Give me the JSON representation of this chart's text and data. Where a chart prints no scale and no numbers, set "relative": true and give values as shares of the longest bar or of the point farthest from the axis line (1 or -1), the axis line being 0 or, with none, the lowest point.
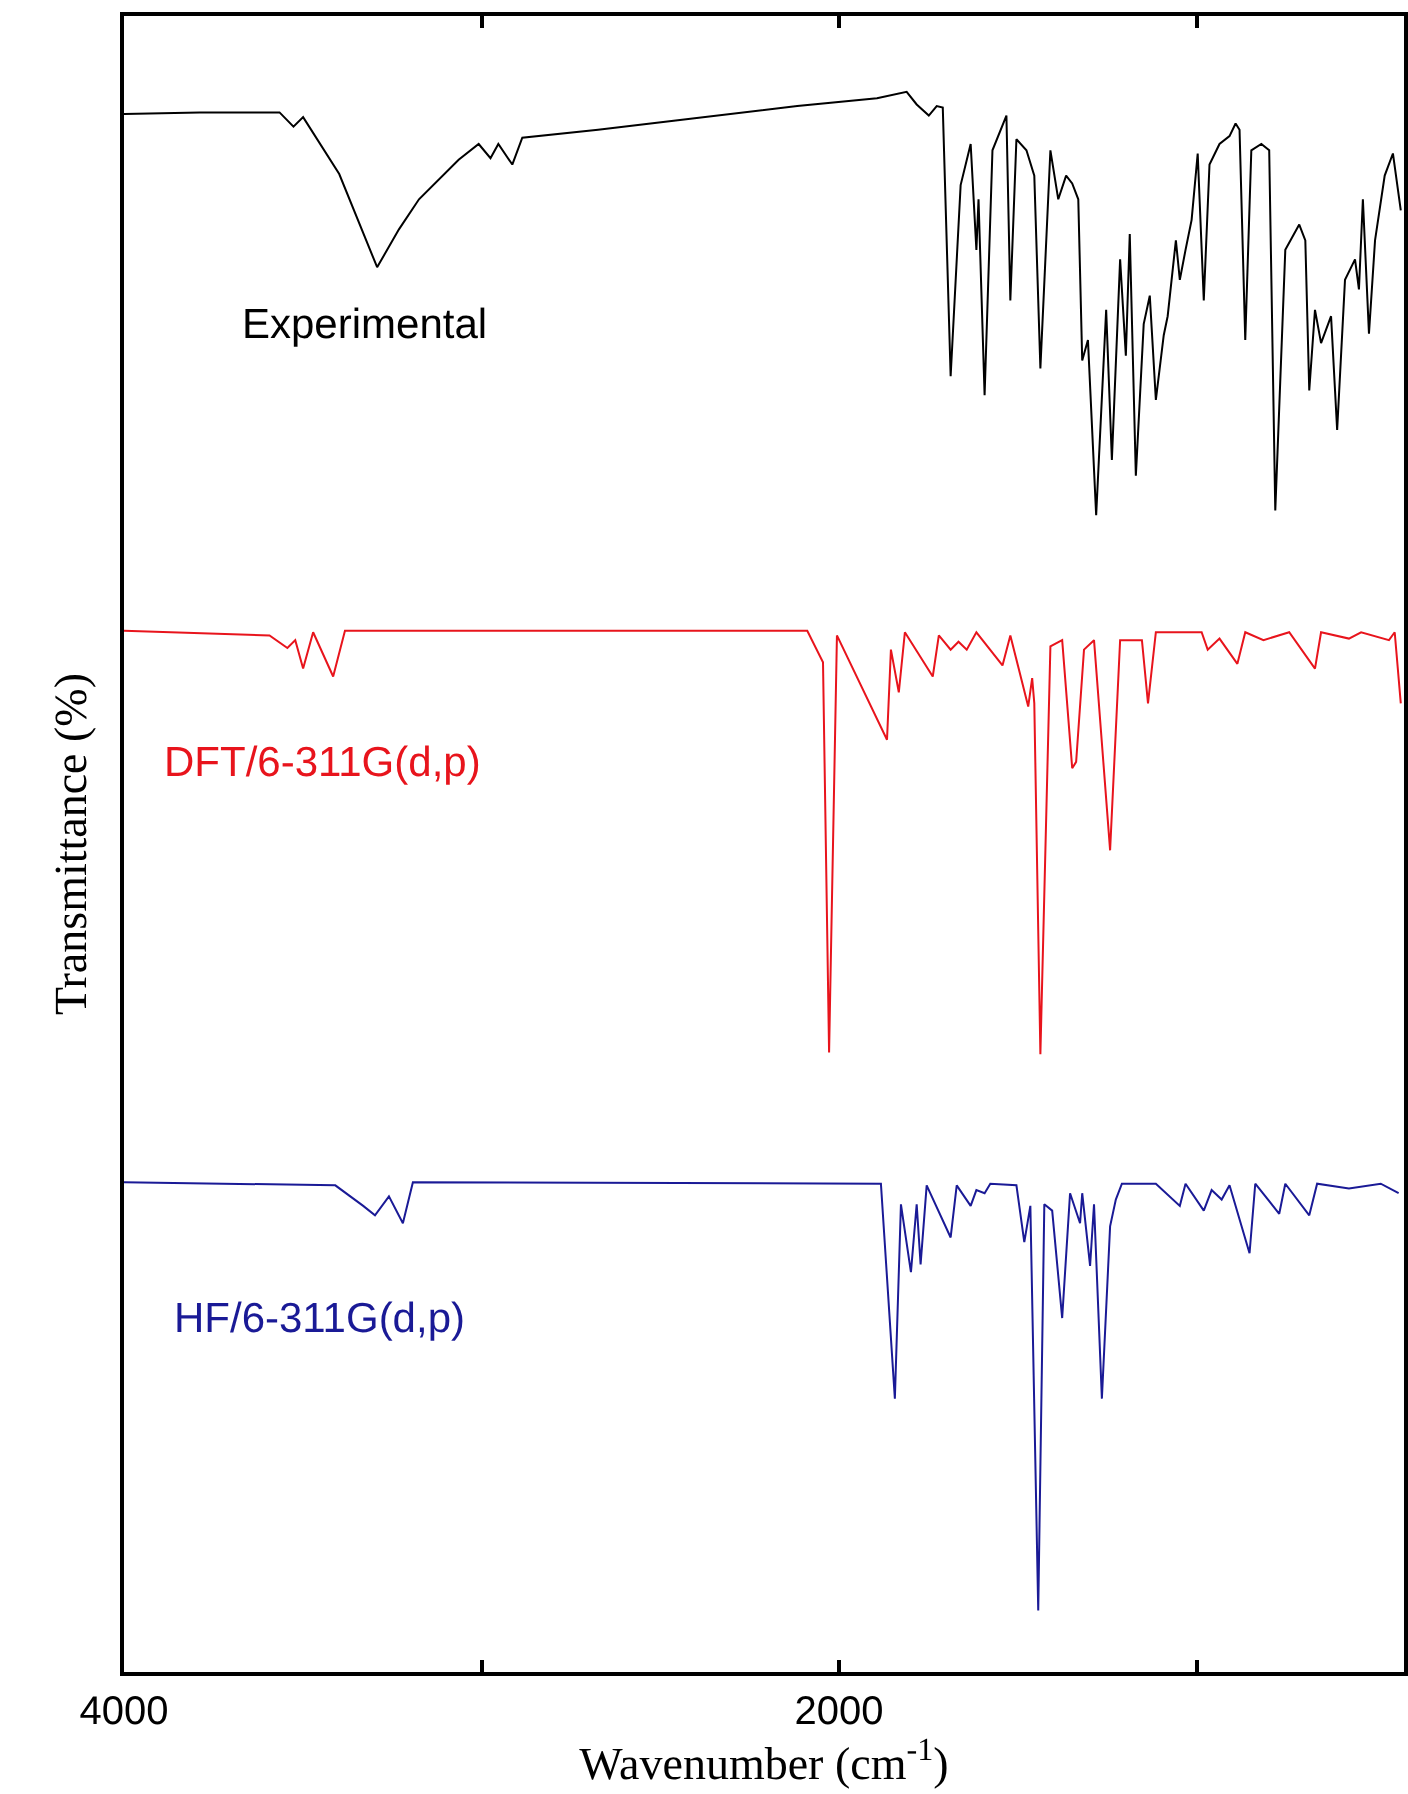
{
  "chart_data": {
    "type": "line",
    "relative": true,
    "xlabel": "Wavenumber (cm$^{-1}$)",
    "ylabel": "Transmittance (%)",
    "xlim": [
      4000,
      420
    ],
    "xticks": [
      4000,
      {
        "value": 3000,
        "label": null
      },
      2000,
      {
        "value": 1000,
        "label": null
      }
    ],
    "legend": false,
    "grid": false,
    "marker": "none",
    "line_style": "solid",
    "series": [
      {
        "name": "Experimental",
        "color": "#000000",
        "x": [
          4000,
          3788,
          3565,
          3526,
          3499,
          3398,
          3292,
          3231,
          3175,
          3064,
          3008,
          2975,
          2953,
          2914,
          2886,
          2674,
          2451,
          2117,
          1894,
          1811,
          1783,
          1749,
          1727,
          1710,
          1688,
          1660,
          1632,
          1616,
          1610,
          1593,
          1571,
          1532,
          1521,
          1504,
          1476,
          1454,
          1437,
          1409,
          1387,
          1365,
          1348,
          1331,
          1320,
          1304,
          1281,
          1253,
          1237,
          1214,
          1198,
          1187,
          1170,
          1148,
          1131,
          1114,
          1092,
          1081,
          1058,
          1047,
          1031,
          1014,
          997,
          980,
          964,
          936,
          908,
          891,
          880,
          864,
          847,
          819,
          797,
          780,
          752,
          713,
          696,
          685,
          669,
          652,
          624,
          607,
          585,
          557,
          546,
          535,
          518,
          501,
          474,
          451,
          429
        ],
        "values": [
          0.986,
          0.987,
          0.987,
          0.978,
          0.984,
          0.948,
          0.889,
          0.913,
          0.932,
          0.957,
          0.967,
          0.958,
          0.967,
          0.954,
          0.971,
          0.976,
          0.982,
          0.991,
          0.996,
          1.0,
          0.992,
          0.985,
          0.991,
          0.99,
          0.82,
          0.941,
          0.967,
          0.9,
          0.932,
          0.808,
          0.963,
          0.985,
          0.868,
          0.97,
          0.963,
          0.947,
          0.825,
          0.963,
          0.932,
          0.947,
          0.942,
          0.932,
          0.83,
          0.843,
          0.732,
          0.862,
          0.767,
          0.894,
          0.833,
          0.91,
          0.757,
          0.853,
          0.871,
          0.805,
          0.846,
          0.858,
          0.906,
          0.881,
          0.9,
          0.919,
          0.961,
          0.868,
          0.954,
          0.967,
          0.972,
          0.98,
          0.976,
          0.843,
          0.963,
          0.967,
          0.963,
          0.735,
          0.9,
          0.916,
          0.906,
          0.811,
          0.862,
          0.841,
          0.858,
          0.786,
          0.881,
          0.894,
          0.875,
          0.932,
          0.847,
          0.906,
          0.947,
          0.961,
          0.925
        ]
      },
      {
        "name": "DFT/6-311G(d,p)",
        "color": "#e8141c",
        "x": [
          4000,
          3593,
          3543,
          3521,
          3499,
          3471,
          3415,
          3382,
          2089,
          2045,
          2028,
          2006,
          1866,
          1855,
          1833,
          1816,
          1738,
          1721,
          1688,
          1666,
          1643,
          1616,
          1543,
          1521,
          1471,
          1460,
          1454,
          1437,
          1409,
          1376,
          1348,
          1337,
          1315,
          1287,
          1242,
          1214,
          1153,
          1136,
          1114,
          986,
          969,
          936,
          886,
          864,
          813,
          741,
          669,
          652,
          574,
          540,
          462,
          446,
          429
        ],
        "values": [
          0.659,
          0.656,
          0.648,
          0.653,
          0.635,
          0.658,
          0.63,
          0.659,
          0.659,
          0.639,
          0.392,
          0.656,
          0.59,
          0.647,
          0.62,
          0.658,
          0.63,
          0.656,
          0.647,
          0.652,
          0.647,
          0.658,
          0.637,
          0.656,
          0.611,
          0.629,
          0.613,
          0.391,
          0.649,
          0.653,
          0.572,
          0.576,
          0.647,
          0.653,
          0.52,
          0.653,
          0.653,
          0.613,
          0.658,
          0.658,
          0.647,
          0.654,
          0.638,
          0.658,
          0.653,
          0.658,
          0.635,
          0.658,
          0.654,
          0.658,
          0.653,
          0.658,
          0.613
        ]
      },
      {
        "name": "HF/6-311G(d,p)",
        "color": "#1a1a96",
        "x": [
          4000,
          3409,
          3331,
          3298,
          3259,
          3220,
          3192,
          1883,
          1844,
          1827,
          1799,
          1783,
          1772,
          1755,
          1688,
          1671,
          1632,
          1616,
          1593,
          1577,
          1504,
          1482,
          1465,
          1443,
          1426,
          1404,
          1376,
          1354,
          1326,
          1320,
          1298,
          1287,
          1265,
          1242,
          1226,
          1209,
          1114,
          1047,
          1031,
          980,
          958,
          930,
          908,
          852,
          836,
          769,
          752,
          685,
          663,
          574,
          485,
          435
        ],
        "values": [
          0.31,
          0.308,
          0.295,
          0.289,
          0.301,
          0.284,
          0.31,
          0.309,
          0.173,
          0.296,
          0.253,
          0.296,
          0.258,
          0.308,
          0.275,
          0.308,
          0.295,
          0.305,
          0.303,
          0.309,
          0.308,
          0.272,
          0.295,
          0.039,
          0.296,
          0.292,
          0.224,
          0.303,
          0.284,
          0.303,
          0.257,
          0.296,
          0.173,
          0.282,
          0.299,
          0.309,
          0.309,
          0.295,
          0.309,
          0.292,
          0.305,
          0.299,
          0.308,
          0.265,
          0.309,
          0.29,
          0.309,
          0.289,
          0.309,
          0.306,
          0.309,
          0.303
        ]
      }
    ]
  }
}
